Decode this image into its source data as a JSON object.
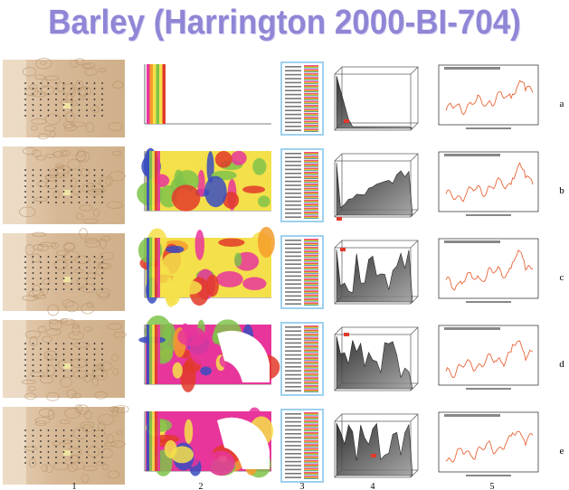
{
  "title": "Barley (Harrington 2000-BI-704)",
  "rows": [
    "a",
    "b",
    "c",
    "d",
    "e"
  ],
  "columns": [
    "1",
    "2",
    "3",
    "4",
    "5"
  ],
  "colors": {
    "title": "#8f86d6",
    "spectrum_line": "#e8663a",
    "tissue": "#d9bfa1",
    "map_magenta": "#e8359b",
    "map_yellow": "#f4e04a",
    "map_red": "#e23a2a",
    "map_green": "#7fc34a"
  }
}
